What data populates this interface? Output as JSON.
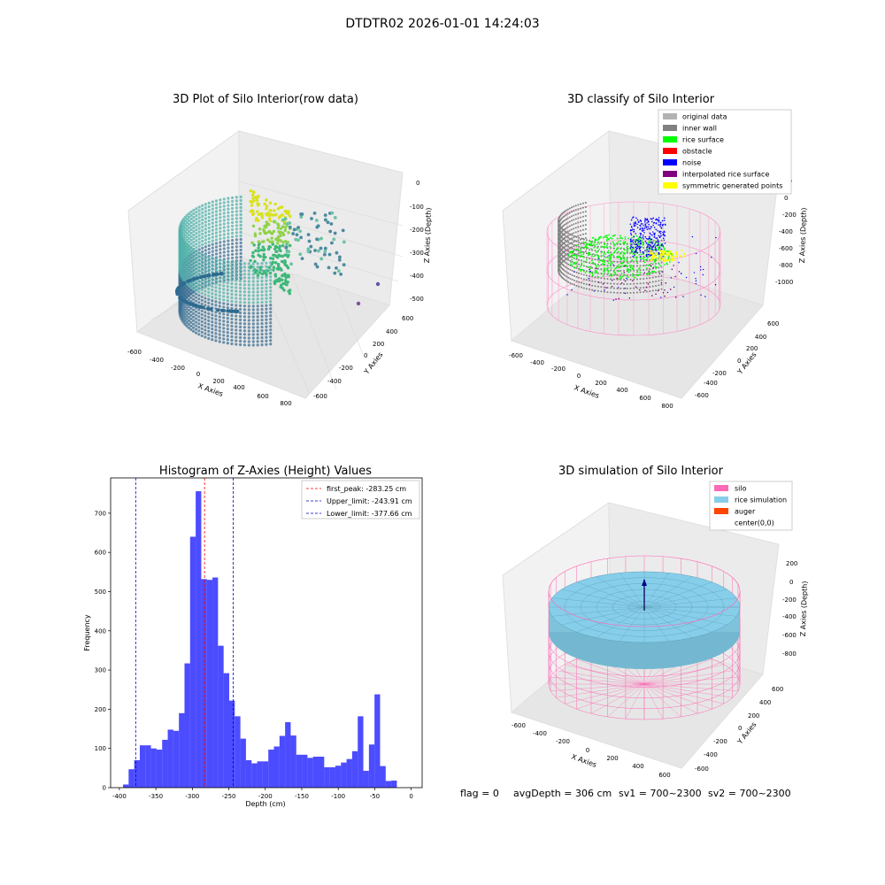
{
  "figure": {
    "suptitle": "DTDTR02 2026-01-01 14:24:03",
    "footer": {
      "flag": "flag = 0",
      "avg_depth": "avgDepth = 306 cm",
      "sv1": "sv1 = 700~2300",
      "sv2": "sv2 = 700~2300"
    }
  },
  "panels": {
    "raw": {
      "title": "3D Plot of Silo Interior(row data)",
      "xlabel": "X Axies",
      "ylabel": "Y Axies",
      "zlabel": "Z Axies (Depth)",
      "x_ticks": [
        "-600",
        "-400",
        "-200",
        "0",
        "200",
        "400",
        "600",
        "800"
      ],
      "y_ticks": [
        "600",
        "400",
        "200",
        "0",
        "-200",
        "-400",
        "-600"
      ],
      "z_ticks": [
        "0",
        "-100",
        "-200",
        "-300",
        "-400",
        "-500"
      ]
    },
    "classify": {
      "title": "3D classify of Silo Interior",
      "xlabel": "X Axies",
      "ylabel": "Y Axies",
      "zlabel": "Z Axies (Depth)",
      "x_ticks": [
        "-600",
        "-400",
        "-200",
        "0",
        "200",
        "400",
        "600",
        "800"
      ],
      "y_ticks": [
        "600",
        "400",
        "200",
        "0",
        "-200",
        "-400",
        "-600"
      ],
      "z_ticks": [
        "200",
        "0",
        "-200",
        "-400",
        "-600",
        "-800",
        "-1000"
      ],
      "legend": [
        {
          "label": "original data",
          "color": "#b3b3b3"
        },
        {
          "label": "inner wall",
          "color": "#808080"
        },
        {
          "label": "rice surface",
          "color": "#00ff00"
        },
        {
          "label": "obstacle",
          "color": "#ff0000"
        },
        {
          "label": "noise",
          "color": "#0000ff"
        },
        {
          "label": "interpolated rice surface",
          "color": "#800080"
        },
        {
          "label": "symmetric generated points",
          "color": "#ffff00"
        }
      ]
    },
    "simulation": {
      "title": "3D simulation of Silo Interior",
      "xlabel": "X Axies",
      "ylabel": "Y Axies",
      "zlabel": "Z Axies (Depth)",
      "x_ticks": [
        "-600",
        "-400",
        "-200",
        "0",
        "200",
        "400",
        "600"
      ],
      "y_ticks": [
        "600",
        "400",
        "200",
        "0",
        "-200",
        "-400",
        "-600"
      ],
      "z_ticks": [
        "200",
        "0",
        "-200",
        "-400",
        "-600",
        "-800"
      ],
      "legend": [
        {
          "label": "silo",
          "color": "#ff69b4"
        },
        {
          "label": "rice simulation",
          "color": "#87ceeb"
        },
        {
          "label": "auger",
          "color": "#ff4500"
        },
        {
          "label": "center(0,0)",
          "color": "#ffffff"
        }
      ]
    }
  },
  "chart_data": [
    {
      "type": "bar",
      "title": "Histogram of Z-Axies (Height) Values",
      "xlabel": "Depth (cm)",
      "ylabel": "Frequency",
      "bar_color": "#0000ff",
      "bin_width": 7.66,
      "bin_start": -395,
      "values": [
        8,
        47,
        70,
        108,
        108,
        100,
        97,
        122,
        148,
        145,
        190,
        317,
        640,
        756,
        532,
        530,
        536,
        362,
        292,
        222,
        182,
        125,
        70,
        62,
        67,
        67,
        97,
        105,
        132,
        167,
        133,
        84,
        84,
        76,
        79,
        79,
        52,
        52,
        56,
        64,
        73,
        93,
        182,
        43,
        110,
        238,
        55,
        17,
        18
      ],
      "xlim": [
        -412,
        15
      ],
      "ylim": [
        0,
        790
      ],
      "x_ticks": [
        -400,
        -350,
        -300,
        -250,
        -200,
        -150,
        -100,
        -50,
        0
      ],
      "y_ticks": [
        0,
        100,
        200,
        300,
        400,
        500,
        600,
        700
      ],
      "vlines": [
        {
          "label": "first_peak: -283.25 cm",
          "x": -283.25,
          "color": "#ff0000"
        },
        {
          "label": "Upper_limit: -243.91 cm",
          "x": -243.91,
          "color": "#0000cd"
        },
        {
          "label": "Lower_limit: -377.66 cm",
          "x": -377.66,
          "color": "#0000cd"
        }
      ],
      "legend_position": "top-right"
    }
  ]
}
